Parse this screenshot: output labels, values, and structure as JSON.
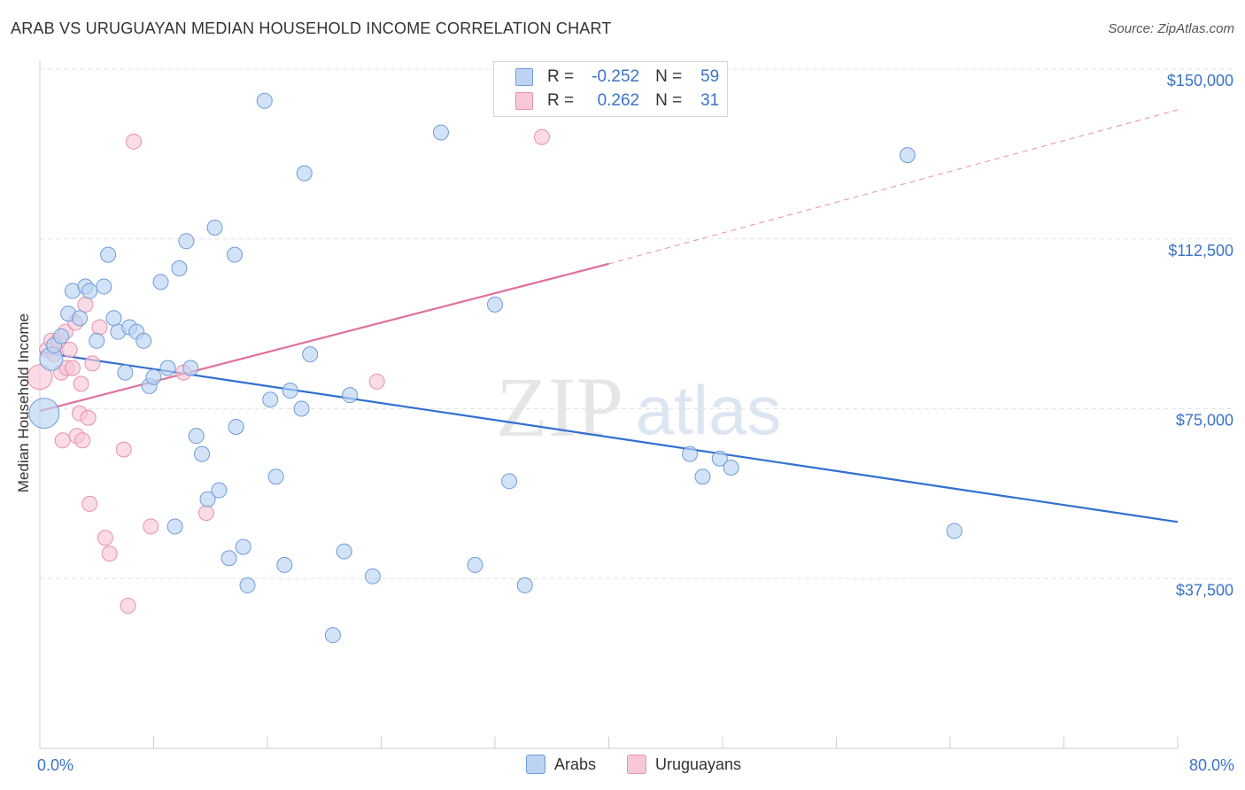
{
  "header": {
    "title": "ARAB VS URUGUAYAN MEDIAN HOUSEHOLD INCOME CORRELATION CHART",
    "source_prefix": "Source: ",
    "source_name": "ZipAtlas.com"
  },
  "legend": {
    "r_label": "R =",
    "n_label": "N =",
    "entries": [
      {
        "name": "Arabs",
        "r": "-0.252",
        "n": "59"
      },
      {
        "name": "Uruguayans",
        "r": "0.262",
        "n": "31"
      }
    ]
  },
  "watermark": {
    "zip": "ZIP",
    "atlas": "atlas"
  },
  "colors": {
    "arabs_fill": "#bcd4f2",
    "arabs_stroke": "#6f9bd8",
    "arabs_line": "#3070d0",
    "uruguayans_fill": "#f8c8d8",
    "uruguayans_stroke": "#e890ac",
    "uruguayans_line": "#e0709a",
    "axis_text": "#3b73c8",
    "grid": "#e4e4e4"
  },
  "chart_data": {
    "type": "scatter",
    "title": "ARAB VS URUGUAYAN MEDIAN HOUSEHOLD INCOME CORRELATION CHART",
    "xlabel": "",
    "ylabel": "Median Household Income",
    "xlim": [
      0,
      80
    ],
    "ylim": [
      0,
      155000
    ],
    "x_tick_labels": [
      "0.0%",
      "80.0%"
    ],
    "y_ticks": [
      37500,
      75000,
      112500,
      150000
    ],
    "y_tick_labels": [
      "$37,500",
      "$75,000",
      "$112,500",
      "$150,000"
    ],
    "grid": true,
    "legend_position": "top-center",
    "series": [
      {
        "name": "Arabs",
        "points": [
          [
            0.3,
            74000
          ],
          [
            0.8,
            86000
          ],
          [
            1.0,
            89000
          ],
          [
            1.5,
            91000
          ],
          [
            2.0,
            96000
          ],
          [
            2.3,
            101000
          ],
          [
            2.8,
            95000
          ],
          [
            3.2,
            102000
          ],
          [
            3.5,
            101000
          ],
          [
            4.0,
            90000
          ],
          [
            4.5,
            102000
          ],
          [
            4.8,
            109000
          ],
          [
            5.2,
            95000
          ],
          [
            5.5,
            92000
          ],
          [
            6.0,
            83000
          ],
          [
            6.3,
            93000
          ],
          [
            6.8,
            92000
          ],
          [
            7.3,
            90000
          ],
          [
            7.7,
            80000
          ],
          [
            8.0,
            82000
          ],
          [
            8.5,
            103000
          ],
          [
            9.0,
            84000
          ],
          [
            9.5,
            49000
          ],
          [
            9.8,
            106000
          ],
          [
            10.3,
            112000
          ],
          [
            10.6,
            84000
          ],
          [
            11.0,
            69000
          ],
          [
            11.4,
            65000
          ],
          [
            11.8,
            55000
          ],
          [
            12.3,
            115000
          ],
          [
            12.6,
            57000
          ],
          [
            13.3,
            42000
          ],
          [
            13.7,
            109000
          ],
          [
            13.8,
            71000
          ],
          [
            14.3,
            44500
          ],
          [
            14.6,
            36000
          ],
          [
            15.8,
            143000
          ],
          [
            16.2,
            77000
          ],
          [
            16.6,
            60000
          ],
          [
            17.2,
            40500
          ],
          [
            17.6,
            79000
          ],
          [
            18.4,
            75000
          ],
          [
            18.6,
            127000
          ],
          [
            19.0,
            87000
          ],
          [
            20.6,
            25000
          ],
          [
            21.4,
            43500
          ],
          [
            21.8,
            78000
          ],
          [
            23.4,
            38000
          ],
          [
            28.2,
            136000
          ],
          [
            30.6,
            40500
          ],
          [
            32.0,
            98000
          ],
          [
            33.0,
            59000
          ],
          [
            34.1,
            36000
          ],
          [
            45.7,
            65000
          ],
          [
            46.6,
            60000
          ],
          [
            47.8,
            64000
          ],
          [
            48.6,
            62000
          ],
          [
            61.0,
            131000
          ],
          [
            64.3,
            48000
          ]
        ]
      },
      {
        "name": "Uruguayans",
        "points": [
          [
            0.0,
            82000
          ],
          [
            0.5,
            88000
          ],
          [
            0.8,
            90000
          ],
          [
            1.0,
            87000
          ],
          [
            1.3,
            90000
          ],
          [
            1.5,
            83000
          ],
          [
            1.6,
            68000
          ],
          [
            1.8,
            92000
          ],
          [
            1.9,
            84000
          ],
          [
            2.1,
            88000
          ],
          [
            2.3,
            84000
          ],
          [
            2.5,
            94000
          ],
          [
            2.6,
            69000
          ],
          [
            2.8,
            74000
          ],
          [
            2.9,
            80500
          ],
          [
            3.0,
            68000
          ],
          [
            3.2,
            98000
          ],
          [
            3.4,
            73000
          ],
          [
            3.5,
            54000
          ],
          [
            3.7,
            85000
          ],
          [
            4.2,
            93000
          ],
          [
            4.6,
            46500
          ],
          [
            4.9,
            43000
          ],
          [
            5.9,
            66000
          ],
          [
            6.2,
            31500
          ],
          [
            6.6,
            134000
          ],
          [
            7.8,
            49000
          ],
          [
            10.1,
            83000
          ],
          [
            11.7,
            52000
          ],
          [
            23.7,
            81000
          ],
          [
            35.3,
            135000
          ]
        ]
      }
    ],
    "trendlines": [
      {
        "name": "Arabs",
        "x": [
          0,
          80
        ],
        "y": [
          87500,
          50000
        ]
      },
      {
        "name": "Uruguayans",
        "x": [
          0,
          40
        ],
        "y": [
          74500,
          107000
        ],
        "dashed_extension_to": [
          80,
          141000
        ]
      }
    ]
  }
}
